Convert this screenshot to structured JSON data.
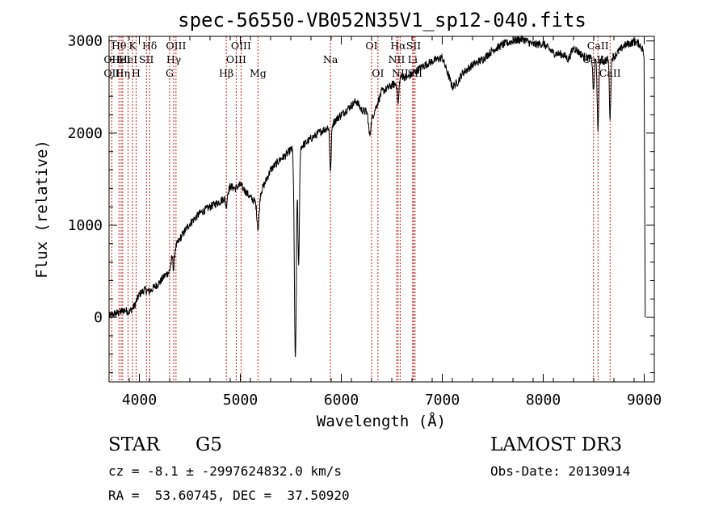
{
  "chart_data": {
    "type": "line",
    "title": "spec-56550-VB052N35V1_sp12-040.fits",
    "xlabel": "Wavelength (Å)",
    "ylabel": "Flux (relative)",
    "xlim": [
      3700,
      9100
    ],
    "ylim": [
      -700,
      3050
    ],
    "x_ticks": [
      4000,
      5000,
      6000,
      7000,
      8000,
      9000
    ],
    "y_ticks": [
      0,
      1000,
      2000,
      3000
    ],
    "series": [
      {
        "name": "flux",
        "points": [
          [
            3700,
            10
          ],
          [
            3750,
            40
          ],
          [
            3800,
            50
          ],
          [
            3850,
            80
          ],
          [
            3900,
            60
          ],
          [
            3950,
            120
          ],
          [
            4000,
            250
          ],
          [
            4050,
            300
          ],
          [
            4100,
            280
          ],
          [
            4150,
            330
          ],
          [
            4200,
            380
          ],
          [
            4250,
            450
          ],
          [
            4300,
            500
          ],
          [
            4330,
            700
          ],
          [
            4400,
            850
          ],
          [
            4500,
            1020
          ],
          [
            4600,
            1130
          ],
          [
            4700,
            1200
          ],
          [
            4800,
            1260
          ],
          [
            4850,
            1300
          ],
          [
            4900,
            1420
          ],
          [
            4950,
            1400
          ],
          [
            5000,
            1440
          ],
          [
            5100,
            1300
          ],
          [
            5150,
            1250
          ],
          [
            5180,
            1150
          ],
          [
            5200,
            1350
          ],
          [
            5300,
            1600
          ],
          [
            5400,
            1720
          ],
          [
            5450,
            1760
          ],
          [
            5500,
            1820
          ],
          [
            5540,
            1850
          ],
          [
            5550,
            1820
          ],
          [
            5600,
            1850
          ],
          [
            5700,
            1940
          ],
          [
            5800,
            2020
          ],
          [
            5850,
            2050
          ],
          [
            5900,
            2080
          ],
          [
            5950,
            2150
          ],
          [
            6000,
            2200
          ],
          [
            6050,
            2250
          ],
          [
            6100,
            2300
          ],
          [
            6150,
            2350
          ],
          [
            6200,
            2250
          ],
          [
            6250,
            2230
          ],
          [
            6300,
            2150
          ],
          [
            6350,
            2300
          ],
          [
            6400,
            2450
          ],
          [
            6450,
            2480
          ],
          [
            6500,
            2520
          ],
          [
            6550,
            2540
          ],
          [
            6600,
            2620
          ],
          [
            6650,
            2600
          ],
          [
            6700,
            2640
          ],
          [
            6750,
            2680
          ],
          [
            6800,
            2720
          ],
          [
            6900,
            2780
          ],
          [
            7000,
            2820
          ],
          [
            7100,
            2500
          ],
          [
            7150,
            2550
          ],
          [
            7200,
            2650
          ],
          [
            7300,
            2740
          ],
          [
            7400,
            2800
          ],
          [
            7500,
            2900
          ],
          [
            7600,
            2960
          ],
          [
            7700,
            3000
          ],
          [
            7800,
            3020
          ],
          [
            7900,
            2960
          ],
          [
            8000,
            2970
          ],
          [
            8100,
            2870
          ],
          [
            8200,
            2850
          ],
          [
            8250,
            2800
          ],
          [
            8300,
            2930
          ],
          [
            8400,
            2830
          ],
          [
            8500,
            2800
          ],
          [
            8600,
            2780
          ],
          [
            8700,
            2830
          ],
          [
            8800,
            2950
          ],
          [
            8900,
            2990
          ],
          [
            8950,
            2970
          ],
          [
            8990,
            2900
          ],
          [
            9000,
            2750
          ]
        ],
        "features": [
          {
            "x": 5545,
            "depth": 2300,
            "width": 14
          },
          {
            "x": 5578,
            "depth": 1300,
            "width": 10
          },
          {
            "x": 5893,
            "depth": 500,
            "width": 10
          },
          {
            "x": 6563,
            "depth": 250,
            "width": 10
          },
          {
            "x": 6280,
            "depth": 200,
            "width": 14
          },
          {
            "x": 8498,
            "depth": 350,
            "width": 10
          },
          {
            "x": 8542,
            "depth": 800,
            "width": 10
          },
          {
            "x": 8662,
            "depth": 650,
            "width": 10
          },
          {
            "x": 5175,
            "depth": 200,
            "width": 14
          },
          {
            "x": 4340,
            "depth": 200,
            "width": 10
          },
          {
            "x": 4861,
            "depth": 120,
            "width": 10
          }
        ],
        "tail_drop": {
          "x": 9010,
          "value": 0
        }
      }
    ],
    "lines": [
      {
        "wave": 3727,
        "label": "OII",
        "row": 1
      },
      {
        "wave": 3727,
        "label": "OII",
        "row": 2
      },
      {
        "wave": 3798,
        "label": "Hθ",
        "row": 0
      },
      {
        "wave": 3820,
        "label": "HeI",
        "row": 1
      },
      {
        "wave": 3835,
        "label": "Hη",
        "row": 2
      },
      {
        "wave": 3889,
        "label": "HeI",
        "row": 1
      },
      {
        "wave": 3933,
        "label": "K",
        "row": 0
      },
      {
        "wave": 3968,
        "label": "H",
        "row": 2
      },
      {
        "wave": 4070,
        "label": "SII",
        "row": 1
      },
      {
        "wave": 4102,
        "label": "Hδ",
        "row": 0
      },
      {
        "wave": 4300,
        "label": "G",
        "row": 2
      },
      {
        "wave": 4340,
        "label": "Hγ",
        "row": 1
      },
      {
        "wave": 4363,
        "label": "OIII",
        "row": 0
      },
      {
        "wave": 4861,
        "label": "Hβ",
        "row": 2
      },
      {
        "wave": 4959,
        "label": "OIII",
        "row": 1
      },
      {
        "wave": 5007,
        "label": "OIII",
        "row": 0
      },
      {
        "wave": 5175,
        "label": "Mg",
        "row": 2
      },
      {
        "wave": 5893,
        "label": "Na",
        "row": 1
      },
      {
        "wave": 6300,
        "label": "OI",
        "row": 0
      },
      {
        "wave": 6363,
        "label": "OI",
        "row": 2
      },
      {
        "wave": 6548,
        "label": "NII",
        "row": 1
      },
      {
        "wave": 6563,
        "label": "Hα",
        "row": 0
      },
      {
        "wave": 6583,
        "label": "NII",
        "row": 2
      },
      {
        "wave": 6707,
        "label": "Li",
        "row": 1
      },
      {
        "wave": 6716,
        "label": "SII",
        "row": 0
      },
      {
        "wave": 6731,
        "label": "SII",
        "row": 2
      },
      {
        "wave": 8498,
        "label": "CaII",
        "row": 1
      },
      {
        "wave": 8542,
        "label": "CaII",
        "row": 0
      },
      {
        "wave": 8662,
        "label": "CaII",
        "row": 2
      }
    ]
  },
  "info": {
    "class": "STAR",
    "subclass": "G5",
    "cz": "cz = -8.1 ± -2997624832.0 km/s",
    "radec": "RA =  53.60745, DEC =  37.50920",
    "survey": "LAMOST DR3",
    "obs_date": "Obs-Date: 20130914"
  },
  "colors": {
    "axis": "#000000",
    "line_marker": "#cc0000",
    "flux": "#000000"
  }
}
